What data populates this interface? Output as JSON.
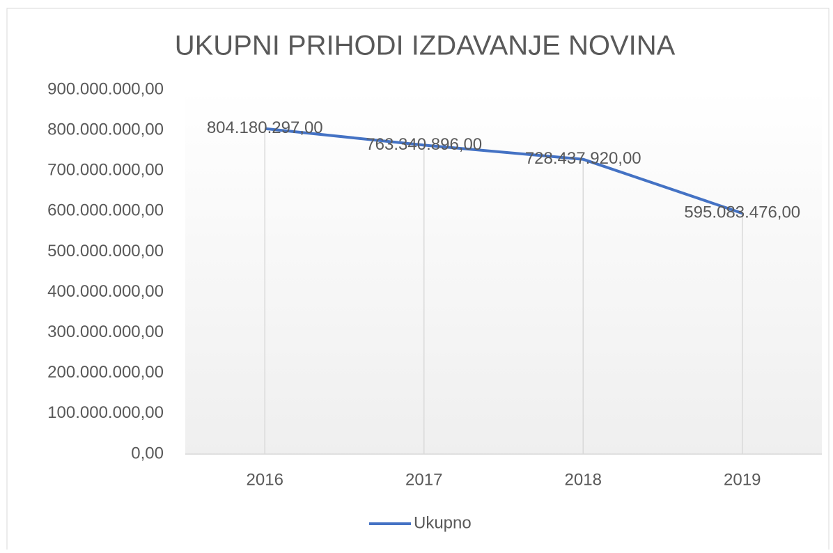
{
  "chart_data": {
    "type": "line",
    "title": "UKUPNI PRIHODI IZDAVANJE NOVINA",
    "categories": [
      "2016",
      "2017",
      "2018",
      "2019"
    ],
    "series": [
      {
        "name": "Ukupno",
        "color": "#4472c4",
        "values": [
          804180297,
          763340896,
          728437920,
          595083476
        ],
        "value_labels": [
          "804.180.297,00",
          "763.340.896,00",
          "728.437.920,00",
          "595.083.476,00"
        ]
      }
    ],
    "ylim": [
      0,
      900000000
    ],
    "yticks": [
      {
        "value": 0,
        "label": "0,00"
      },
      {
        "value": 100000000,
        "label": "100.000.000,00"
      },
      {
        "value": 200000000,
        "label": "200.000.000,00"
      },
      {
        "value": 300000000,
        "label": "300.000.000,00"
      },
      {
        "value": 400000000,
        "label": "400.000.000,00"
      },
      {
        "value": 500000000,
        "label": "500.000.000,00"
      },
      {
        "value": 600000000,
        "label": "600.000.000,00"
      },
      {
        "value": 700000000,
        "label": "700.000.000,00"
      },
      {
        "value": 800000000,
        "label": "800.000.000,00"
      },
      {
        "value": 900000000,
        "label": "900.000.000,00"
      }
    ],
    "legend": "bottom"
  }
}
